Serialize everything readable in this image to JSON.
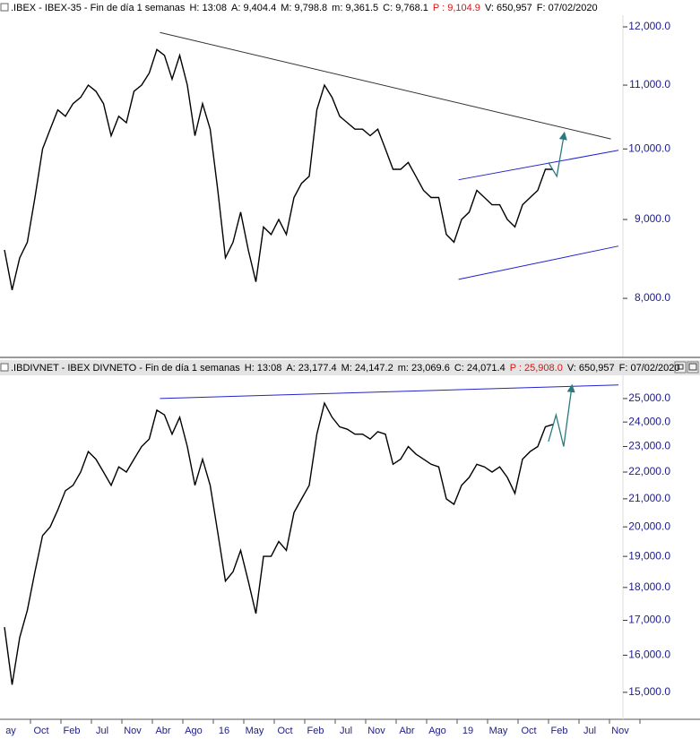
{
  "chart_data": [
    {
      "type": "line",
      "header": ".IBEX - IBEX-35 - Fin de día 1 semanas",
      "fields": [
        {
          "text": "H: 13:08"
        },
        {
          "text": "A: 9,404.4"
        },
        {
          "text": "M: 9,798.8"
        },
        {
          "text": "m: 9,361.5"
        },
        {
          "text": "C: 9,768.1"
        },
        {
          "text": "P : 9,104.9",
          "color": "#dd1111"
        },
        {
          "text": "V: 650,957"
        },
        {
          "text": "F: 07/02/2020"
        }
      ],
      "log_scale": true,
      "color": "#000000",
      "ylim": [
        7364,
        12194
      ],
      "yticks": [
        {
          "value": 8000,
          "label": "8,000.0"
        },
        {
          "value": 9000,
          "label": "9,000.0"
        },
        {
          "value": 10000,
          "label": "10,000.0"
        },
        {
          "value": 11000,
          "label": "11,000.0"
        },
        {
          "value": 12000,
          "label": "12,000.0"
        }
      ],
      "values": [
        8600,
        8100,
        8500,
        8700,
        9300,
        10000,
        10300,
        10600,
        10500,
        10700,
        10800,
        11000,
        10900,
        10700,
        10200,
        10500,
        10400,
        10900,
        11000,
        11200,
        11600,
        11500,
        11100,
        11500,
        11000,
        10200,
        10700,
        10300,
        9400,
        8500,
        8700,
        9100,
        8600,
        8200,
        8900,
        8800,
        9000,
        8800,
        9300,
        9500,
        9600,
        10600,
        11000,
        10800,
        10500,
        10400,
        10300,
        10300,
        10200,
        10300,
        10000,
        9700,
        9700,
        9800,
        9600,
        9400,
        9300,
        9300,
        8800,
        8700,
        9000,
        9100,
        9400,
        9300,
        9200,
        9200,
        9000,
        8900,
        9200,
        9300,
        9400,
        9700,
        9700
      ],
      "trendlines": [
        {
          "color": "#333333",
          "points": [
            [
              20.4,
              11900
            ],
            [
              79.6,
              10150
            ]
          ]
        },
        {
          "color": "#2222cc",
          "points": [
            [
              59.6,
              9550
            ],
            [
              80.6,
              9980
            ]
          ]
        },
        {
          "color": "#2222cc",
          "points": [
            [
              59.6,
              8230
            ],
            [
              80.6,
              8650
            ]
          ]
        }
      ],
      "arrows": [
        {
          "color": "#2a7a80",
          "points": [
            [
              71.4,
              9800
            ],
            [
              72.5,
              9600
            ],
            [
              73.5,
              10250
            ]
          ]
        }
      ]
    },
    {
      "type": "line",
      "header": ".IBDIVNET - IBEX DIVNETO - Fin de día 1 semanas",
      "fields": [
        {
          "text": "H: 13:08"
        },
        {
          "text": "A: 23,177.4"
        },
        {
          "text": "M: 24,147.2"
        },
        {
          "text": "m: 23,069.6"
        },
        {
          "text": "C: 24,071.4"
        },
        {
          "text": "P : 25,908.0",
          "color": "#dd1111"
        },
        {
          "text": "V: 650,957"
        },
        {
          "text": "F: 07/02/2020"
        }
      ],
      "log_scale": true,
      "color": "#000000",
      "ylim": [
        14380,
        25990
      ],
      "yticks": [
        {
          "value": 15000,
          "label": "15,000.0"
        },
        {
          "value": 16000,
          "label": "16,000.0"
        },
        {
          "value": 17000,
          "label": "17,000.0"
        },
        {
          "value": 18000,
          "label": "18,000.0"
        },
        {
          "value": 19000,
          "label": "19,000.0"
        },
        {
          "value": 20000,
          "label": "20,000.0"
        },
        {
          "value": 21000,
          "label": "21,000.0"
        },
        {
          "value": 22000,
          "label": "22,000.0"
        },
        {
          "value": 23000,
          "label": "23,000.0"
        },
        {
          "value": 24000,
          "label": "24,000.0"
        },
        {
          "value": 25000,
          "label": "25,000.0"
        }
      ],
      "values": [
        16800,
        15200,
        16500,
        17300,
        18500,
        19700,
        20000,
        20600,
        21300,
        21500,
        22000,
        22800,
        22500,
        22000,
        21500,
        22200,
        22000,
        22500,
        23000,
        23300,
        24500,
        24300,
        23500,
        24200,
        23000,
        21500,
        22500,
        21500,
        19800,
        18200,
        18500,
        19200,
        18200,
        17200,
        19000,
        19000,
        19500,
        19200,
        20500,
        21000,
        21500,
        23500,
        24800,
        24200,
        23800,
        23700,
        23500,
        23500,
        23300,
        23600,
        23500,
        22300,
        22500,
        23000,
        22700,
        22500,
        22300,
        22200,
        21000,
        20800,
        21500,
        21800,
        22300,
        22200,
        22000,
        22200,
        21800,
        21200,
        22500,
        22800,
        23000,
        23800,
        23900
      ],
      "trendlines": [
        {
          "color": "#2222cc",
          "points": [
            [
              20.4,
              25000
            ],
            [
              80.6,
              25600
            ]
          ]
        }
      ],
      "arrows": [
        {
          "color": "#2a7a80",
          "points": [
            [
              71.4,
              23200
            ],
            [
              72.4,
              24300
            ],
            [
              73.4,
              23000
            ],
            [
              74.5,
              25600
            ]
          ]
        }
      ],
      "xticks": [
        "ay",
        "Oct",
        "Feb",
        "Jul",
        "Nov",
        "Abr",
        "Ago",
        "16",
        "May",
        "Oct",
        "Feb",
        "Jul",
        "Nov",
        "Abr",
        "Ago",
        "19",
        "May",
        "Oct",
        "Feb",
        "Jul",
        "Nov"
      ]
    }
  ]
}
